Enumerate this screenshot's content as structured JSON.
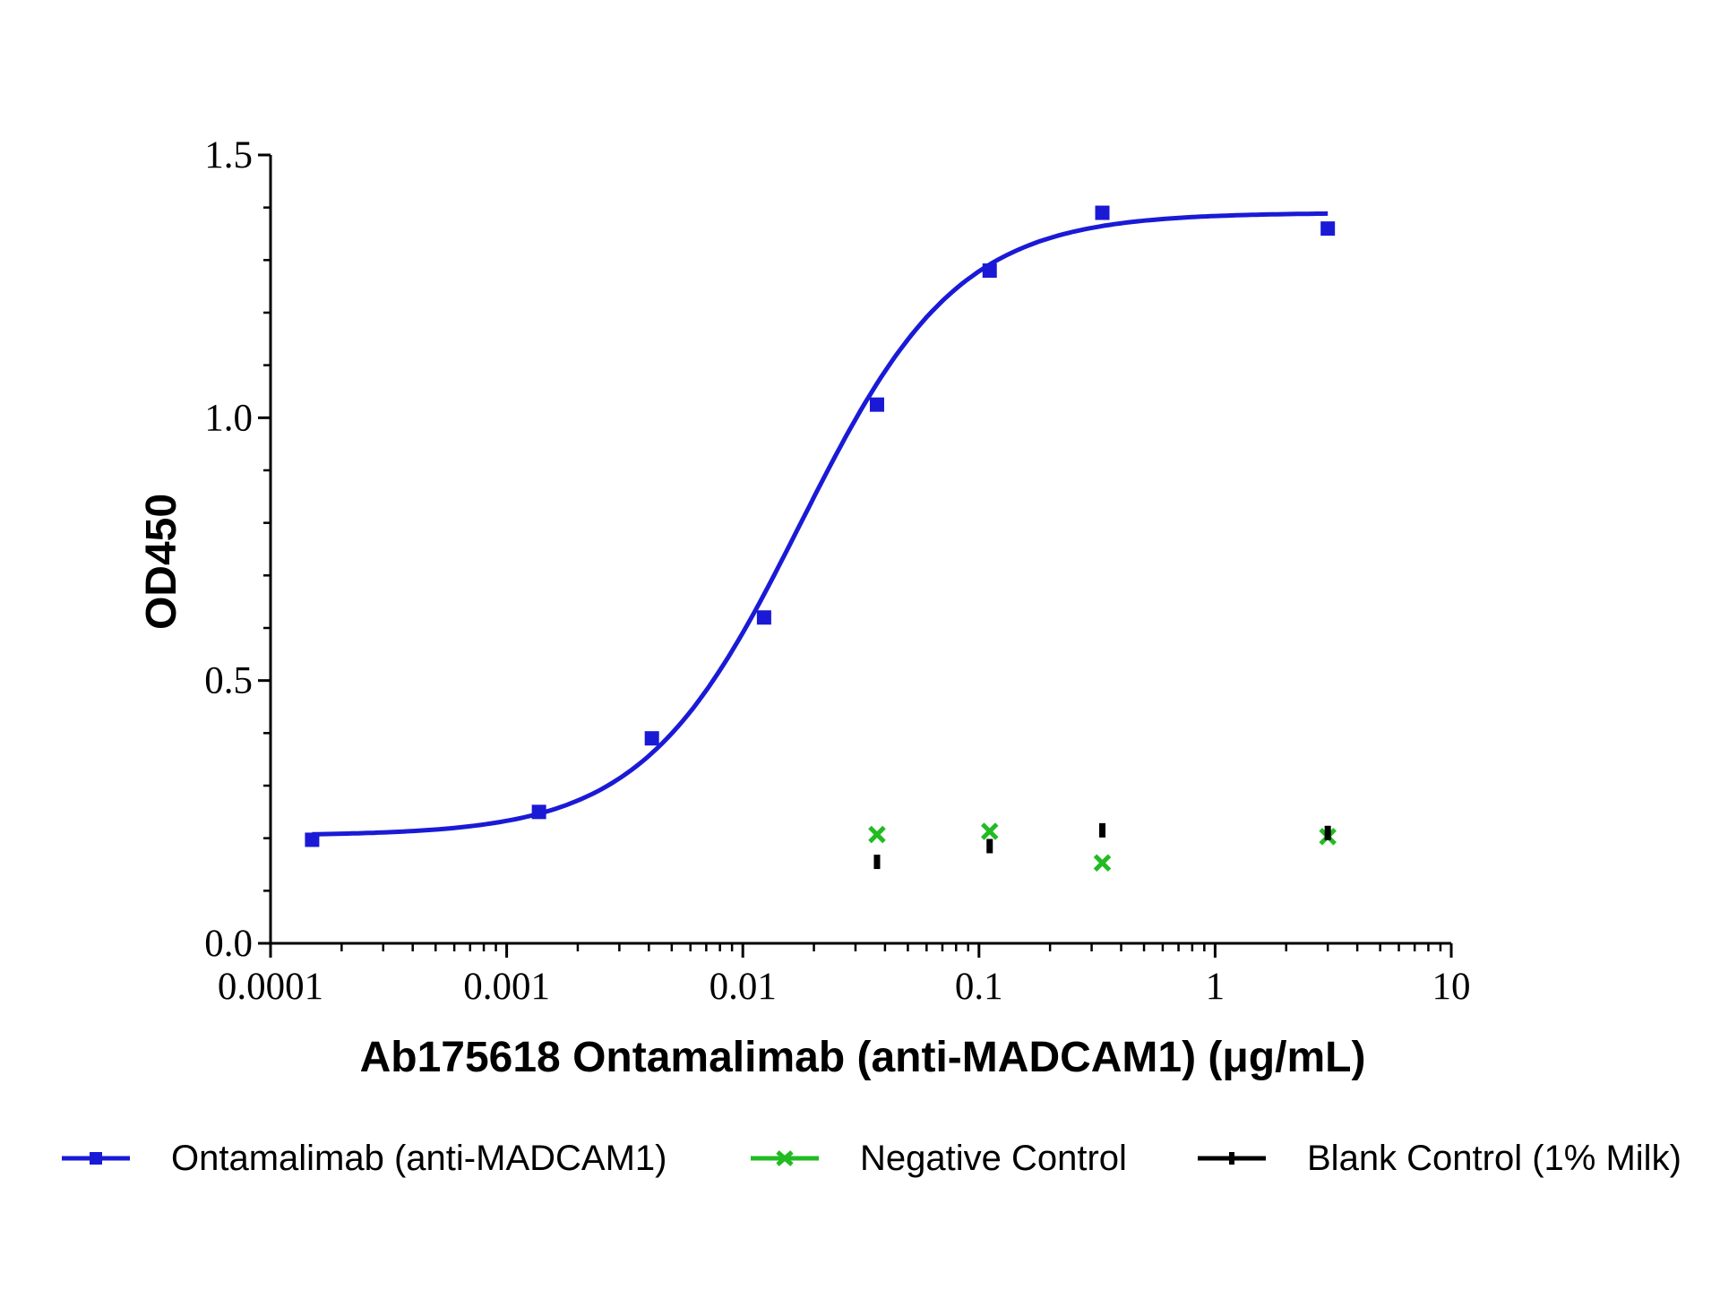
{
  "chart_data": {
    "type": "scatter",
    "xlabel": "Ab175618 Ontamalimab (anti-MADCAM1) (μg/mL)",
    "ylabel": "OD450",
    "x_scale": "log",
    "xlim": [
      0.0001,
      10
    ],
    "ylim": [
      0,
      1.5
    ],
    "x_ticks": [
      "0.0001",
      "0.001",
      "0.01",
      "0.1",
      "1",
      "10"
    ],
    "y_ticks": [
      "0.0",
      "0.5",
      "1.0",
      "1.5"
    ],
    "grid": false,
    "legend_position": "bottom",
    "series": [
      {
        "name": "Ontamalimab (anti-MADCAM1)",
        "color": "#1a1ad6",
        "marker": "square",
        "fit": "4PL",
        "x": [
          0.00015,
          0.00137,
          0.00412,
          0.0123,
          0.037,
          0.111,
          0.333,
          3
        ],
        "y": [
          0.197,
          0.25,
          0.39,
          0.62,
          1.025,
          1.28,
          1.39,
          1.36
        ]
      },
      {
        "name": "Negative Control",
        "color": "#22bb22",
        "marker": "x",
        "x": [
          0.037,
          0.111,
          0.333,
          3
        ],
        "y": [
          0.207,
          0.213,
          0.153,
          0.203
        ]
      },
      {
        "name": "Blank Control (1% Milk)",
        "color": "#000000",
        "marker": "dash",
        "x": [
          0.037,
          0.111,
          0.333,
          3
        ],
        "y": [
          0.155,
          0.185,
          0.215,
          0.21
        ]
      }
    ]
  }
}
